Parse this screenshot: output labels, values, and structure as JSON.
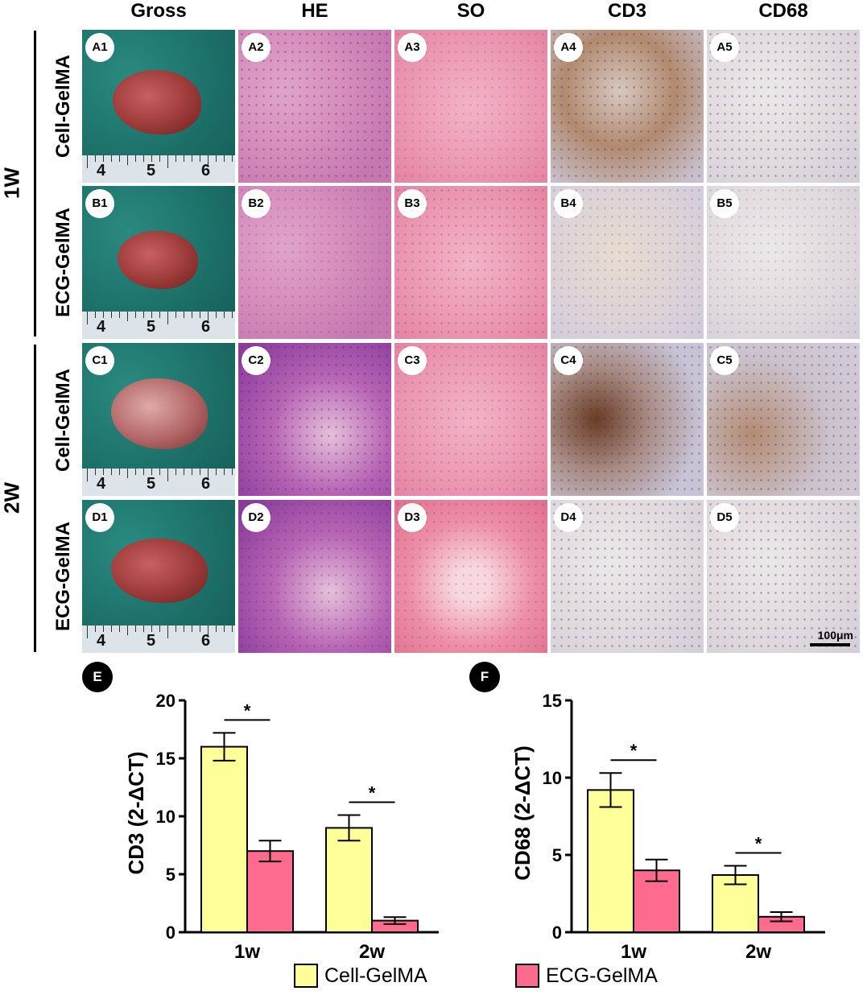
{
  "columns": [
    "Gross",
    "HE",
    "SO",
    "CD3",
    "CD68"
  ],
  "periods": [
    "1W",
    "2W"
  ],
  "rows": [
    {
      "group": "Cell-GelMA",
      "labels": [
        "A1",
        "A2",
        "A3",
        "A4",
        "A5"
      ]
    },
    {
      "group": "ECG-GelMA",
      "labels": [
        "B1",
        "B2",
        "B3",
        "B4",
        "B5"
      ]
    },
    {
      "group": "Cell-GelMA",
      "labels": [
        "C1",
        "C2",
        "C3",
        "C4",
        "C5"
      ]
    },
    {
      "group": "ECG-GelMA",
      "labels": [
        "D1",
        "D2",
        "D3",
        "D4",
        "D5"
      ]
    }
  ],
  "ruler_numbers": [
    "4",
    "5",
    "6"
  ],
  "scale_bar": "100μm",
  "colors": {
    "cell": "#ffff99",
    "ecg": "#ff6b8f"
  },
  "legend": [
    "Cell-GelMA",
    "ECG-GelMA"
  ],
  "significance": "*",
  "chart_data": [
    {
      "panel": "E",
      "type": "bar",
      "ylabel": "CD3 (2-ΔCT)",
      "ylim": [
        0,
        20
      ],
      "yticks": [
        "0",
        "5",
        "10",
        "15",
        "20"
      ],
      "categories": [
        "1w",
        "2w"
      ],
      "series": [
        {
          "name": "Cell-GelMA",
          "values": [
            16,
            9
          ],
          "errors": [
            1.2,
            1.1
          ]
        },
        {
          "name": "ECG-GelMA",
          "values": [
            7,
            1
          ],
          "errors": [
            0.9,
            0.3
          ]
        }
      ]
    },
    {
      "panel": "F",
      "type": "bar",
      "ylabel": "CD68 (2-ΔCT)",
      "ylim": [
        0,
        15
      ],
      "yticks": [
        "0",
        "5",
        "10",
        "15"
      ],
      "categories": [
        "1w",
        "2w"
      ],
      "series": [
        {
          "name": "Cell-GelMA",
          "values": [
            9.2,
            3.7
          ],
          "errors": [
            1.1,
            0.6
          ]
        },
        {
          "name": "ECG-GelMA",
          "values": [
            4,
            1
          ],
          "errors": [
            0.7,
            0.3
          ]
        }
      ]
    }
  ]
}
